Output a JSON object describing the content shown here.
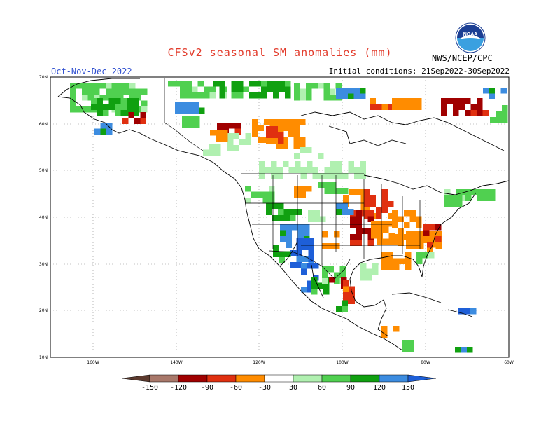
{
  "title": "CFSv2 seasonal SM anomalies (mm)",
  "season": "Oct-Nov-Dec 2022",
  "initial_conditions": "Initial conditions: 21Sep2022-30Sep2022",
  "agency": "NWS/NCEP/CPC",
  "logo_text": "NOAA",
  "lat_labels": [
    "70N",
    "60N",
    "50N",
    "40N",
    "30N",
    "20N",
    "10N"
  ],
  "lon_labels": [
    "160W",
    "140W",
    "120W",
    "100W",
    "80W",
    "60W"
  ],
  "colorbar": {
    "labels": [
      "-150",
      "-120",
      "-90",
      "-60",
      "-30",
      "30",
      "60",
      "90",
      "120",
      "150"
    ],
    "colors": [
      "#5c3a2e",
      "#a8786a",
      "#a00000",
      "#e03010",
      "#ff8c00",
      "#ffffff",
      "#b0f0b0",
      "#50d050",
      "#10a010",
      "#3c8ce0",
      "#1e5fd8"
    ]
  }
}
